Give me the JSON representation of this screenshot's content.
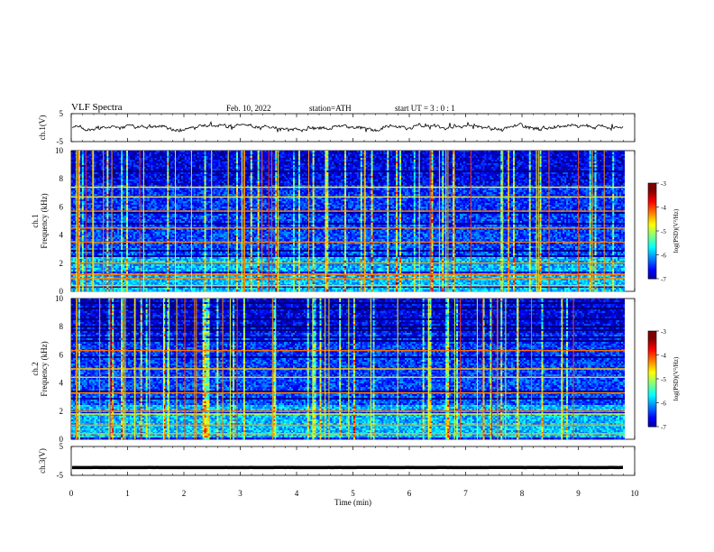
{
  "header": {
    "title": "VLF  Spectra",
    "date": "Feb. 10, 2022",
    "station": "station=ATH",
    "start_time": "start  UT  =   3  : 0  : 1"
  },
  "chart_data": [
    {
      "type": "line",
      "panel": "ch1-waveform",
      "ylabel": "ch.1(V)",
      "ylim": [
        -5,
        5
      ],
      "yticks": [
        "5",
        "-5"
      ],
      "xlim": [
        0,
        10
      ],
      "x_extent_min": 9.8,
      "approx_level": 0.2
    },
    {
      "type": "heatmap",
      "panel": "ch1-spectrogram",
      "ylabel": "ch.1\nFrequency  (kHz)",
      "ylim": [
        0,
        10
      ],
      "yticks": [
        "0",
        "2",
        "4",
        "6",
        "8",
        "10"
      ],
      "xlim": [
        0,
        10
      ],
      "colorbar": {
        "label": "log(PSD)(V²/Hz)",
        "range": [
          -7,
          -3
        ],
        "ticks": [
          "-3",
          "-4",
          "-5",
          "-6",
          "-7"
        ]
      },
      "strong_lines_khz": [
        0.4,
        0.9,
        1.2,
        2.0,
        3.5,
        4.5,
        5.7,
        6.7,
        7.4
      ],
      "seed": 7
    },
    {
      "type": "heatmap",
      "panel": "ch2-spectrogram",
      "ylabel": "ch.2\nFrequency  (kHz)",
      "ylim": [
        0,
        10
      ],
      "yticks": [
        "0",
        "2",
        "4",
        "6",
        "8",
        "10"
      ],
      "xlim": [
        0,
        10
      ],
      "colorbar": {
        "label": "log(PSD)(V²/Hz)",
        "range": [
          -7,
          -3
        ],
        "ticks": [
          "-3",
          "-4",
          "-5",
          "-6",
          "-7"
        ]
      },
      "strong_lines_khz": [
        0.4,
        1.0,
        1.8,
        2.0,
        3.3,
        4.4,
        5.0,
        6.3
      ],
      "seed": 13
    },
    {
      "type": "line",
      "panel": "ch3-waveform",
      "ylabel": "ch.3(V)",
      "ylim": [
        -5,
        5
      ],
      "yticks": [
        "5",
        "-5"
      ],
      "xlim": [
        0,
        10
      ],
      "xticks": [
        "0",
        "1",
        "2",
        "3",
        "4",
        "5",
        "6",
        "7",
        "8",
        "9",
        "10"
      ],
      "xlabel": "Time  (min)",
      "approx_level": -2.3
    }
  ]
}
